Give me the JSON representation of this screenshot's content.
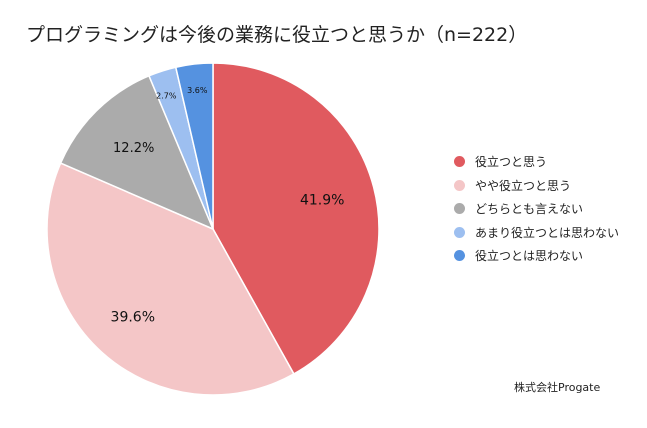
{
  "title": "プログラミングは今後の業務に役立つと思うか（n=222）",
  "source": "株式会社Progate",
  "chart_data": {
    "type": "pie",
    "title": "プログラミングは今後の業務に役立つと思うか（n=222）",
    "slices": [
      {
        "label": "役立つと思う",
        "value": 41.9,
        "display": "41.9%",
        "color": "#e05a5f"
      },
      {
        "label": "やや役立つと思う",
        "value": 39.6,
        "display": "39.6%",
        "color": "#f4c6c7"
      },
      {
        "label": "どちらとも言えない",
        "value": 12.2,
        "display": "12.2%",
        "color": "#ababab"
      },
      {
        "label": "あまり役立つとは思わない",
        "value": 2.7,
        "display": "2.7%",
        "color": "#9dbff0"
      },
      {
        "label": "役立つとは思わない",
        "value": 3.6,
        "display": "3.6%",
        "color": "#5592e0"
      }
    ],
    "legend_position": "right"
  }
}
